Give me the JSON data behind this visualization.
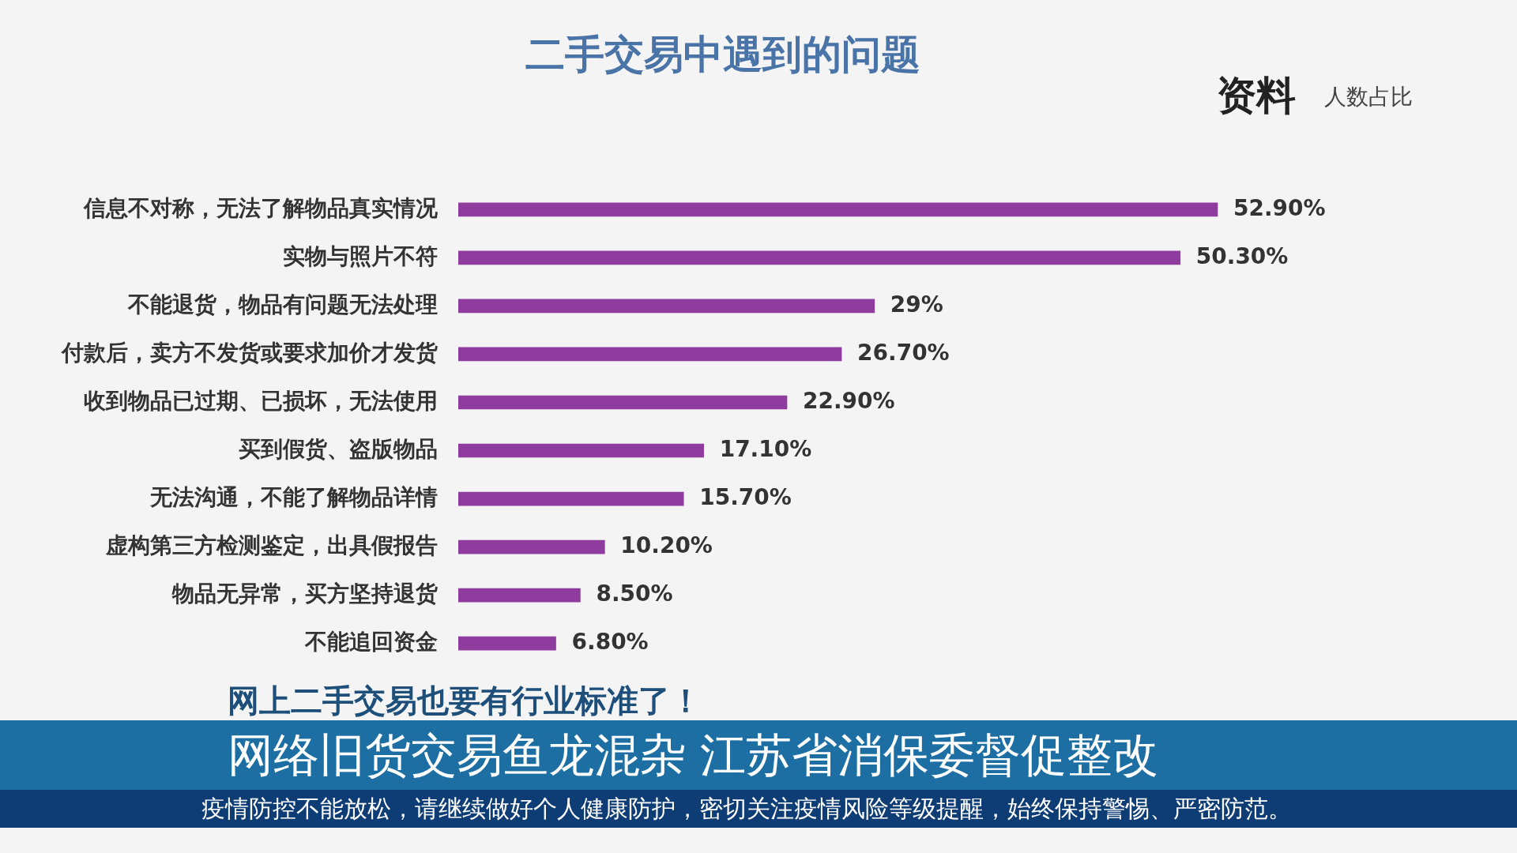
{
  "chart_data": {
    "type": "bar",
    "orientation": "horizontal",
    "title": "二手交易中遇到的问题",
    "categories": [
      "信息不对称，无法了解物品真实情况",
      "实物与照片不符",
      "不能退货，物品有问题无法处理",
      "付款后，卖方不发货或要求加价才发货",
      "收到物品已过期、已损坏，无法使用",
      "买到假货、盗版物品",
      "无法沟通，不能了解物品详情",
      "虚构第三方检测鉴定，出具假报告",
      "物品无异常，买方坚持退货",
      "不能追回资金"
    ],
    "values": [
      52.9,
      50.3,
      29,
      26.7,
      22.9,
      17.1,
      15.7,
      10.2,
      8.5,
      6.8
    ],
    "value_labels": [
      "52.90%",
      "50.30%",
      "29%",
      "26.70%",
      "22.90%",
      "17.10%",
      "15.70%",
      "10.20%",
      "8.50%",
      "6.80%"
    ],
    "color": "#8e3d9e",
    "tick_labels": "y",
    "legend": false,
    "annotations": [
      "资料",
      "人数占比",
      "网上二手交易也要有行业标准了！",
      "网络旧货交易鱼龙混杂 江苏省消保委督促整改",
      "疫情防控不能放松，请继续做好个人健康防护，密切关注疫情风险等级提醒，始终保持警惕、严密防范。"
    ]
  }
}
